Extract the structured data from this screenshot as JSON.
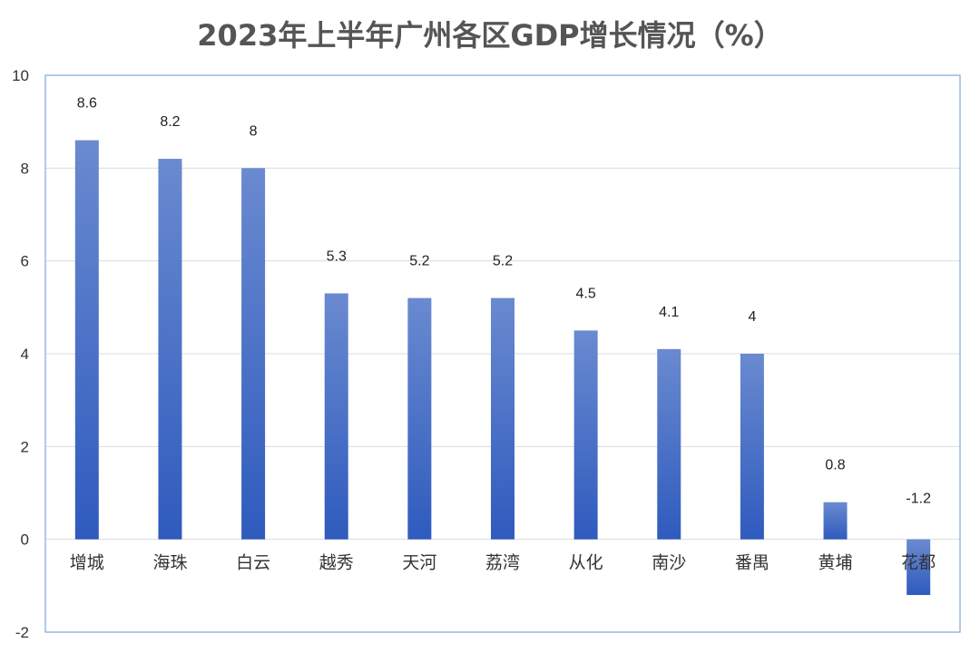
{
  "chart_data": {
    "type": "bar",
    "title": "2023年上半年广州各区GDP增长情况（%）",
    "categories": [
      "增城",
      "海珠",
      "白云",
      "越秀",
      "天河",
      "荔湾",
      "从化",
      "南沙",
      "番禺",
      "黄埔",
      "花都"
    ],
    "values": [
      8.6,
      8.2,
      8,
      5.3,
      5.2,
      5.2,
      4.5,
      4.1,
      4,
      0.8,
      -1.2
    ],
    "value_labels": [
      "8.6",
      "8.2",
      "8",
      "5.3",
      "5.2",
      "5.2",
      "4.5",
      "4.1",
      "4",
      "0.8",
      "-1.2"
    ],
    "y_ticks": [
      10,
      8,
      6,
      4,
      2,
      0,
      -2
    ],
    "ylim": [
      -2,
      10
    ],
    "xlabel": "",
    "ylabel": "",
    "grid": true,
    "legend": "none",
    "colors": {
      "bar_top": "#6A8AD0",
      "bar_bottom": "#2F5BBE",
      "frame": "#7FA7DA",
      "grid": "#DCDCDC"
    }
  }
}
